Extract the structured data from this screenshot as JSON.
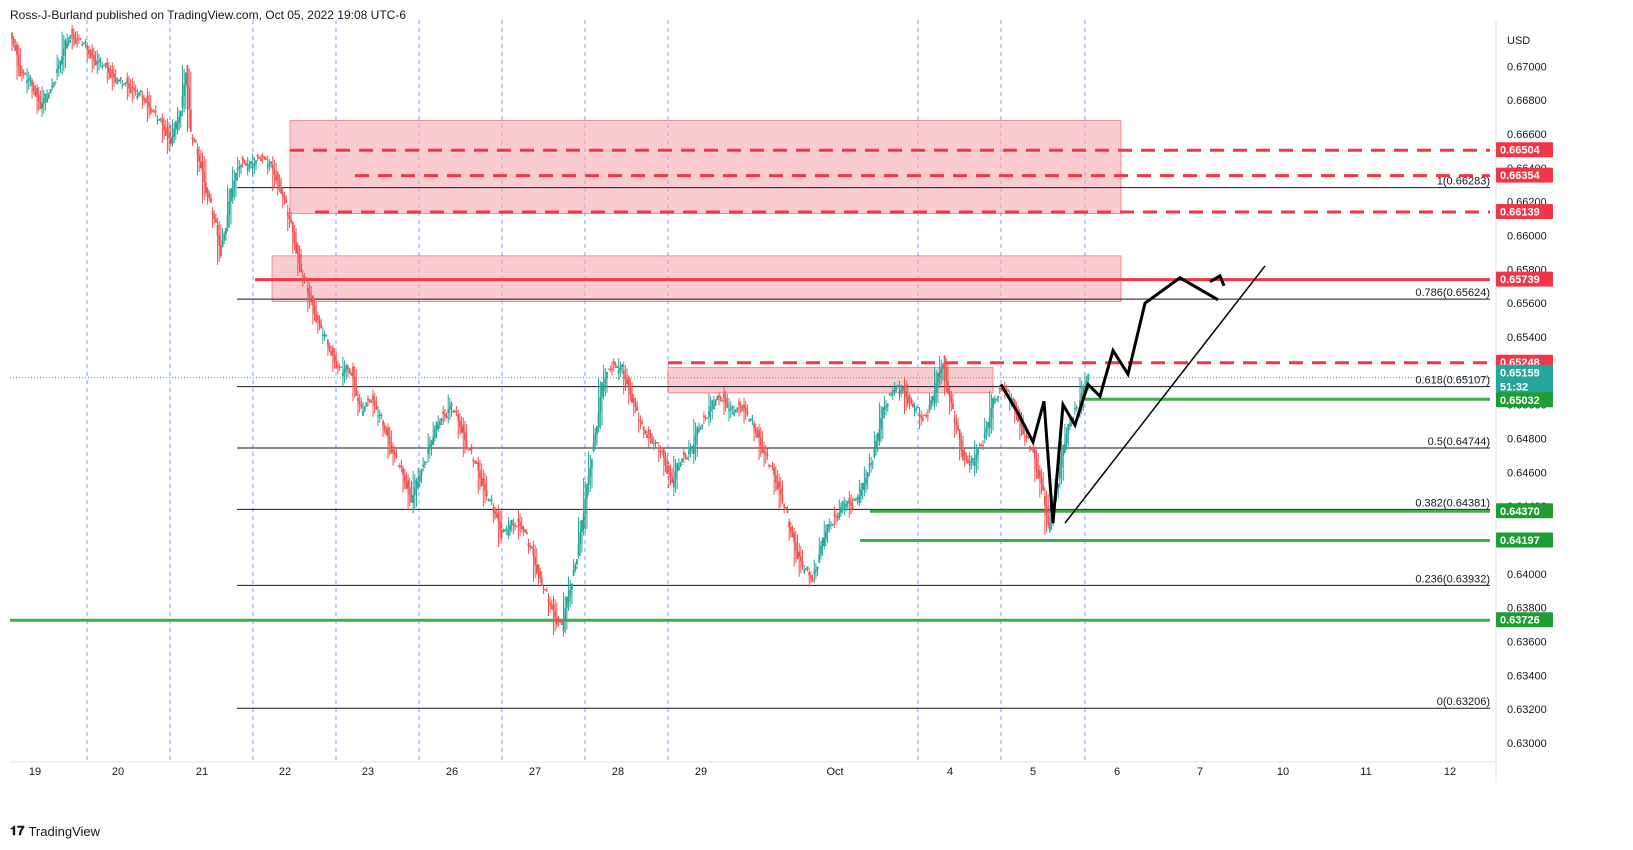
{
  "header": {
    "publisher": "Ross-J-Burland published on TradingView.com, Oct 05, 2022 19:08 UTC-6"
  },
  "footer": {
    "brand": "TradingView",
    "logo": "tradingview-logo-icon"
  },
  "colors": {
    "up": "#26a69a",
    "down": "#ef5350",
    "zone": "#f5a3a8",
    "red_line": "#f23645",
    "green_line": "#3cb043",
    "fib_line": "#131722",
    "grid_vline": "#2962ff",
    "badge_red": "#f23645",
    "badge_green": "#1e9e32",
    "badge_teal": "#26a69a"
  },
  "chart_data": {
    "type": "candlestick",
    "y_axis_unit": "USD",
    "ylim": [
      0.629,
      0.6725
    ],
    "y_ticks": [
      "0.67000",
      "0.66800",
      "0.66600",
      "0.66400",
      "0.66200",
      "0.66000",
      "0.65800",
      "0.65600",
      "0.65400",
      "0.65200",
      "0.65000",
      "0.64800",
      "0.64600",
      "0.64400",
      "0.64200",
      "0.64000",
      "0.63800",
      "0.63600",
      "0.63400",
      "0.63200",
      "0.63000"
    ],
    "x_ticks": [
      "19",
      "20",
      "21",
      "22",
      "23",
      "26",
      "27",
      "28",
      "29",
      "Oct",
      "4",
      "5",
      "6",
      "7",
      "10",
      "11",
      "12"
    ],
    "fib_levels": [
      {
        "label": "1(0.66283)",
        "value": 0.66283
      },
      {
        "label": "0.786(0.65624)",
        "value": 0.65624
      },
      {
        "label": "0.618(0.65107)",
        "value": 0.65107
      },
      {
        "label": "0.5(0.64744)",
        "value": 0.64744
      },
      {
        "label": "0.382(0.64381)",
        "value": 0.64381
      },
      {
        "label": "0.236(0.63932)",
        "value": 0.63932
      },
      {
        "label": "0(0.63206)",
        "value": 0.63206
      }
    ],
    "supply_zones": [
      {
        "from": 0.6613,
        "to": 0.6668
      },
      {
        "from": 0.6561,
        "to": 0.6588
      },
      {
        "from": 0.6507,
        "to": 0.6522
      }
    ],
    "resistance_lines": [
      0.66504,
      0.66354,
      0.66139,
      0.65248
    ],
    "solid_resistance": 0.65739,
    "support_lines": [
      0.65032,
      0.6437,
      0.64197,
      0.63726
    ],
    "price_badges": [
      {
        "text": "0.66504",
        "color": "red"
      },
      {
        "text": "0.66354",
        "color": "red"
      },
      {
        "text": "0.66139",
        "color": "red"
      },
      {
        "text": "0.65739",
        "color": "red"
      },
      {
        "text": "0.65248",
        "color": "red"
      },
      {
        "text": "0.65159",
        "color": "teal"
      },
      {
        "text": "51:32",
        "color": "teal"
      },
      {
        "text": "0.65032",
        "color": "green"
      },
      {
        "text": "0.64370",
        "color": "green"
      },
      {
        "text": "0.64197",
        "color": "green"
      },
      {
        "text": "0.63726",
        "color": "green"
      }
    ],
    "last_price": 0.65159,
    "price_path": [
      [
        0,
        0.672
      ],
      [
        2,
        0.6698
      ],
      [
        4,
        0.669
      ],
      [
        6,
        0.6678
      ],
      [
        8,
        0.6684
      ],
      [
        10,
        0.6705
      ],
      [
        12,
        0.6718
      ],
      [
        14,
        0.6716
      ],
      [
        16,
        0.6706
      ],
      [
        18,
        0.6702
      ],
      [
        20,
        0.6696
      ],
      [
        22,
        0.669
      ],
      [
        24,
        0.6688
      ],
      [
        26,
        0.6682
      ],
      [
        28,
        0.6676
      ],
      [
        30,
        0.6666
      ],
      [
        32,
        0.6657
      ],
      [
        34,
        0.6672
      ],
      [
        35,
        0.67
      ],
      [
        36,
        0.6662
      ],
      [
        38,
        0.664
      ],
      [
        40,
        0.6618
      ],
      [
        42,
        0.659
      ],
      [
        44,
        0.6625
      ],
      [
        46,
        0.6645
      ],
      [
        48,
        0.664
      ],
      [
        50,
        0.6648
      ],
      [
        52,
        0.664
      ],
      [
        54,
        0.6628
      ],
      [
        56,
        0.6605
      ],
      [
        58,
        0.658
      ],
      [
        60,
        0.656
      ],
      [
        62,
        0.6545
      ],
      [
        64,
        0.653
      ],
      [
        66,
        0.652
      ],
      [
        68,
        0.652
      ],
      [
        70,
        0.6495
      ],
      [
        72,
        0.6505
      ],
      [
        74,
        0.649
      ],
      [
        76,
        0.6475
      ],
      [
        78,
        0.646
      ],
      [
        80,
        0.6445
      ],
      [
        82,
        0.646
      ],
      [
        84,
        0.648
      ],
      [
        86,
        0.6492
      ],
      [
        88,
        0.65
      ],
      [
        90,
        0.6485
      ],
      [
        92,
        0.647
      ],
      [
        94,
        0.6455
      ],
      [
        96,
        0.644
      ],
      [
        98,
        0.6425
      ],
      [
        100,
        0.6428
      ],
      [
        102,
        0.643
      ],
      [
        104,
        0.6412
      ],
      [
        106,
        0.6395
      ],
      [
        108,
        0.6378
      ],
      [
        110,
        0.637
      ],
      [
        112,
        0.6395
      ],
      [
        114,
        0.643
      ],
      [
        116,
        0.647
      ],
      [
        118,
        0.651
      ],
      [
        120,
        0.6525
      ],
      [
        122,
        0.652
      ],
      [
        124,
        0.6505
      ],
      [
        126,
        0.6485
      ],
      [
        128,
        0.648
      ],
      [
        130,
        0.647
      ],
      [
        132,
        0.6455
      ],
      [
        134,
        0.6468
      ],
      [
        136,
        0.6475
      ],
      [
        138,
        0.649
      ],
      [
        140,
        0.65
      ],
      [
        142,
        0.6505
      ],
      [
        144,
        0.6495
      ],
      [
        146,
        0.65
      ],
      [
        148,
        0.6488
      ],
      [
        150,
        0.6475
      ],
      [
        152,
        0.646
      ],
      [
        154,
        0.6445
      ],
      [
        156,
        0.642
      ],
      [
        158,
        0.6405
      ],
      [
        160,
        0.6396
      ],
      [
        162,
        0.642
      ],
      [
        164,
        0.6432
      ],
      [
        166,
        0.644
      ],
      [
        168,
        0.6442
      ],
      [
        170,
        0.645
      ],
      [
        172,
        0.647
      ],
      [
        174,
        0.6495
      ],
      [
        176,
        0.651
      ],
      [
        178,
        0.6508
      ],
      [
        180,
        0.65
      ],
      [
        182,
        0.649
      ],
      [
        184,
        0.6505
      ],
      [
        186,
        0.6525
      ],
      [
        188,
        0.6495
      ],
      [
        190,
        0.647
      ],
      [
        192,
        0.6465
      ],
      [
        194,
        0.648
      ],
      [
        196,
        0.65
      ],
      [
        198,
        0.6512
      ],
      [
        200,
        0.65
      ],
      [
        202,
        0.6485
      ],
      [
        204,
        0.647
      ],
      [
        206,
        0.645
      ],
      [
        207,
        0.6425
      ],
      [
        208,
        0.644
      ],
      [
        210,
        0.6475
      ],
      [
        212,
        0.6495
      ],
      [
        214,
        0.6508
      ],
      [
        215,
        0.6516
      ]
    ],
    "projection_path": [
      [
        0.6512,
        0
      ],
      [
        0.6495,
        1
      ],
      [
        0.6478,
        2
      ],
      [
        0.6502,
        3
      ],
      [
        0.643,
        4
      ],
      [
        0.65,
        5
      ],
      [
        0.6488,
        6
      ],
      [
        0.6512,
        7
      ],
      [
        0.6505,
        8
      ],
      [
        0.6532,
        9
      ],
      [
        0.6518,
        10
      ],
      [
        0.656,
        11
      ],
      [
        0.6575,
        12
      ],
      [
        0.6562,
        13
      ]
    ],
    "trendline": {
      "from": 0.643,
      "to": 0.6582
    }
  }
}
